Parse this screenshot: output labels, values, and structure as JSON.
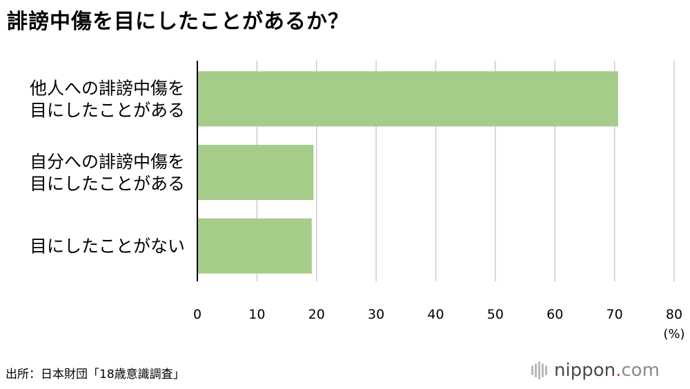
{
  "title": "誹謗中傷を目にしたことがあるか？",
  "source": "出所：日本財団「18歳意識調査」",
  "logo": {
    "name": "nippon",
    "dot": ".",
    "tld": "com"
  },
  "colors": {
    "bar": "#a6cc8a",
    "grid": "#cccccc",
    "axis": "#000000"
  },
  "chart_data": {
    "type": "bar",
    "orientation": "horizontal",
    "categories": [
      [
        "他人への誹謗中傷を",
        "目にしたことがある"
      ],
      [
        "自分への誹謗中傷を",
        "目にしたことがある"
      ],
      [
        "目にしたことがない"
      ]
    ],
    "values": [
      70.6,
      19.5,
      19.2
    ],
    "xlim": [
      0,
      80
    ],
    "xticks": [
      0,
      10,
      20,
      30,
      40,
      50,
      60,
      70,
      80
    ],
    "xunit": "(%)",
    "grid": true,
    "legend": "none"
  }
}
